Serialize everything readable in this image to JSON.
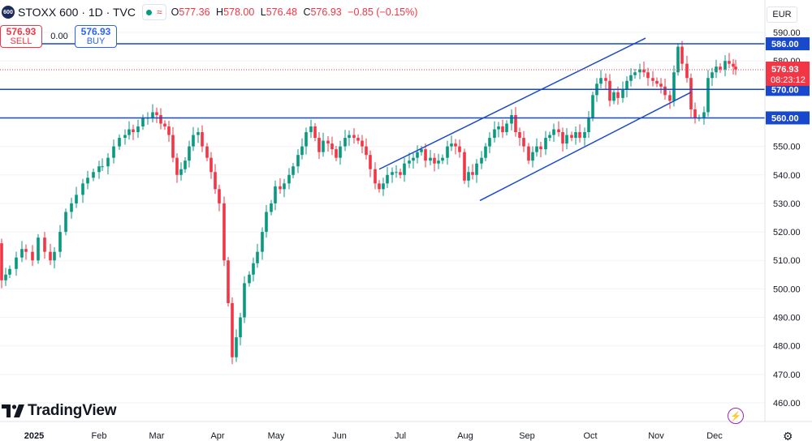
{
  "header": {
    "badge": "600",
    "symbol": "STOXX 600 · 1D · TVC",
    "ohlc": {
      "o_label": "O",
      "o": "577.36",
      "h_label": "H",
      "h": "578.00",
      "l_label": "L",
      "l": "576.48",
      "c_label": "C",
      "c": "576.93",
      "change": "−0.85 (−0.15%)"
    }
  },
  "trade": {
    "sell_price": "576.93",
    "sell_label": "SELL",
    "spread": "0.00",
    "buy_price": "576.93",
    "buy_label": "BUY"
  },
  "currency": "EUR",
  "logo": "TradingView",
  "colors": {
    "up": "#089981",
    "down": "#f23645",
    "line": "#1848cc",
    "last": "#f23645",
    "hline_label": "#1848cc"
  },
  "icons": [
    "lightning-icon",
    "gear-icon"
  ],
  "chart_data": {
    "type": "candlestick",
    "ylim": [
      455,
      595
    ],
    "y_ticks": [
      460,
      470,
      480,
      490,
      500,
      510,
      520,
      530,
      540,
      550,
      560,
      570,
      580,
      590
    ],
    "x_labels": [
      "2025",
      "Feb",
      "Mar",
      "Apr",
      "May",
      "Jun",
      "Jul",
      "Aug",
      "Sep",
      "Oct",
      "Nov",
      "Dec"
    ],
    "last_price": "576.93",
    "countdown": "08:23:12",
    "horizontal_lines": [
      586.0,
      570.0,
      560.0
    ],
    "horizontal_line_labels": [
      "586.00",
      "570.00",
      "560.00"
    ],
    "channel": {
      "upper": [
        [
          "Jun 25",
          542
        ],
        [
          "Oct 28",
          588
        ]
      ],
      "lower": [
        [
          "Aug 01",
          531
        ],
        [
          "Nov 15",
          569
        ]
      ]
    },
    "closes": [
      [
        -13,
        521
      ],
      [
        -8,
        520
      ],
      [
        -3,
        516
      ],
      [
        2,
        503
      ],
      [
        7,
        505
      ],
      [
        12,
        507
      ],
      [
        20,
        511
      ],
      [
        27,
        514
      ],
      [
        32,
        513
      ],
      [
        40,
        510
      ],
      [
        47,
        518
      ],
      [
        55,
        513
      ],
      [
        62,
        510
      ],
      [
        67,
        513
      ],
      [
        74,
        520
      ],
      [
        81,
        527
      ],
      [
        88,
        530
      ],
      [
        94,
        533
      ],
      [
        102,
        537
      ],
      [
        108,
        539
      ],
      [
        115,
        541
      ],
      [
        122,
        543
      ],
      [
        126,
        543
      ],
      [
        133,
        546
      ],
      [
        140,
        550
      ],
      [
        147,
        553
      ],
      [
        154,
        554
      ],
      [
        159,
        556
      ],
      [
        164,
        555
      ],
      [
        170,
        557
      ],
      [
        176,
        560
      ],
      [
        182,
        560
      ],
      [
        188,
        562
      ],
      [
        193,
        561
      ],
      [
        198,
        558
      ],
      [
        203,
        557
      ],
      [
        208,
        554
      ],
      [
        213,
        546
      ],
      [
        218,
        540
      ],
      [
        223,
        542
      ],
      [
        228,
        545
      ],
      [
        233,
        550
      ],
      [
        238,
        554
      ],
      [
        244,
        555
      ],
      [
        249,
        550
      ],
      [
        255,
        546
      ],
      [
        260,
        541
      ],
      [
        265,
        535
      ],
      [
        270,
        530
      ],
      [
        276,
        510
      ],
      [
        281,
        495
      ],
      [
        286,
        476
      ],
      [
        291,
        483
      ],
      [
        296,
        490
      ],
      [
        301,
        502
      ],
      [
        307,
        505
      ],
      [
        312,
        509
      ],
      [
        317,
        513
      ],
      [
        323,
        520
      ],
      [
        328,
        527
      ],
      [
        334,
        530
      ],
      [
        339,
        536
      ],
      [
        345,
        535
      ],
      [
        350,
        537
      ],
      [
        356,
        540
      ],
      [
        361,
        543
      ],
      [
        367,
        547
      ],
      [
        372,
        550
      ],
      [
        377,
        555
      ],
      [
        383,
        557
      ],
      [
        388,
        553
      ],
      [
        393,
        548
      ],
      [
        398,
        552
      ],
      [
        404,
        551
      ],
      [
        409,
        549
      ],
      [
        414,
        546
      ],
      [
        419,
        550
      ],
      [
        425,
        553
      ],
      [
        430,
        554
      ],
      [
        436,
        553
      ],
      [
        441,
        552
      ],
      [
        446,
        550
      ],
      [
        451,
        547
      ],
      [
        456,
        542
      ],
      [
        462,
        537
      ],
      [
        467,
        535
      ],
      [
        472,
        537
      ],
      [
        477,
        540
      ],
      [
        483,
        541
      ],
      [
        488,
        541
      ],
      [
        493,
        540
      ],
      [
        498,
        544
      ],
      [
        504,
        545
      ],
      [
        509,
        546
      ],
      [
        514,
        548
      ],
      [
        519,
        549
      ],
      [
        524,
        545
      ],
      [
        530,
        546
      ],
      [
        535,
        544
      ],
      [
        540,
        545
      ],
      [
        545,
        546
      ],
      [
        551,
        550
      ],
      [
        556,
        551
      ],
      [
        561,
        550
      ],
      [
        566,
        548
      ],
      [
        572,
        538
      ],
      [
        577,
        541
      ],
      [
        582,
        540
      ],
      [
        587,
        544
      ],
      [
        593,
        546
      ],
      [
        598,
        550
      ],
      [
        603,
        553
      ],
      [
        609,
        556
      ],
      [
        614,
        557
      ],
      [
        619,
        555
      ],
      [
        624,
        558
      ],
      [
        630,
        561
      ],
      [
        635,
        555
      ],
      [
        640,
        553
      ],
      [
        645,
        550
      ],
      [
        651,
        545
      ],
      [
        656,
        548
      ],
      [
        661,
        550
      ],
      [
        666,
        549
      ],
      [
        672,
        553
      ],
      [
        677,
        554
      ],
      [
        682,
        556
      ],
      [
        688,
        555
      ],
      [
        693,
        551
      ],
      [
        698,
        554
      ],
      [
        704,
        553
      ],
      [
        709,
        555
      ],
      [
        714,
        553
      ],
      [
        720,
        555
      ],
      [
        725,
        560
      ],
      [
        730,
        568
      ],
      [
        735,
        572
      ],
      [
        740,
        574
      ],
      [
        746,
        573
      ],
      [
        751,
        566
      ],
      [
        756,
        569
      ],
      [
        761,
        567
      ],
      [
        767,
        570
      ],
      [
        772,
        573
      ],
      [
        777,
        575
      ],
      [
        782,
        576
      ],
      [
        788,
        577
      ],
      [
        793,
        576
      ],
      [
        798,
        574
      ],
      [
        804,
        573
      ],
      [
        809,
        572
      ],
      [
        814,
        571
      ],
      [
        819,
        568
      ],
      [
        825,
        566
      ],
      [
        830,
        576
      ],
      [
        835,
        585
      ],
      [
        840,
        579
      ],
      [
        846,
        574
      ],
      [
        851,
        563
      ],
      [
        856,
        560
      ],
      [
        861,
        560
      ],
      [
        867,
        562
      ],
      [
        872,
        574
      ],
      [
        877,
        576
      ],
      [
        882,
        578
      ],
      [
        887,
        577
      ],
      [
        893,
        580
      ],
      [
        898,
        579
      ],
      [
        903,
        578
      ],
      [
        906,
        577
      ]
    ]
  }
}
